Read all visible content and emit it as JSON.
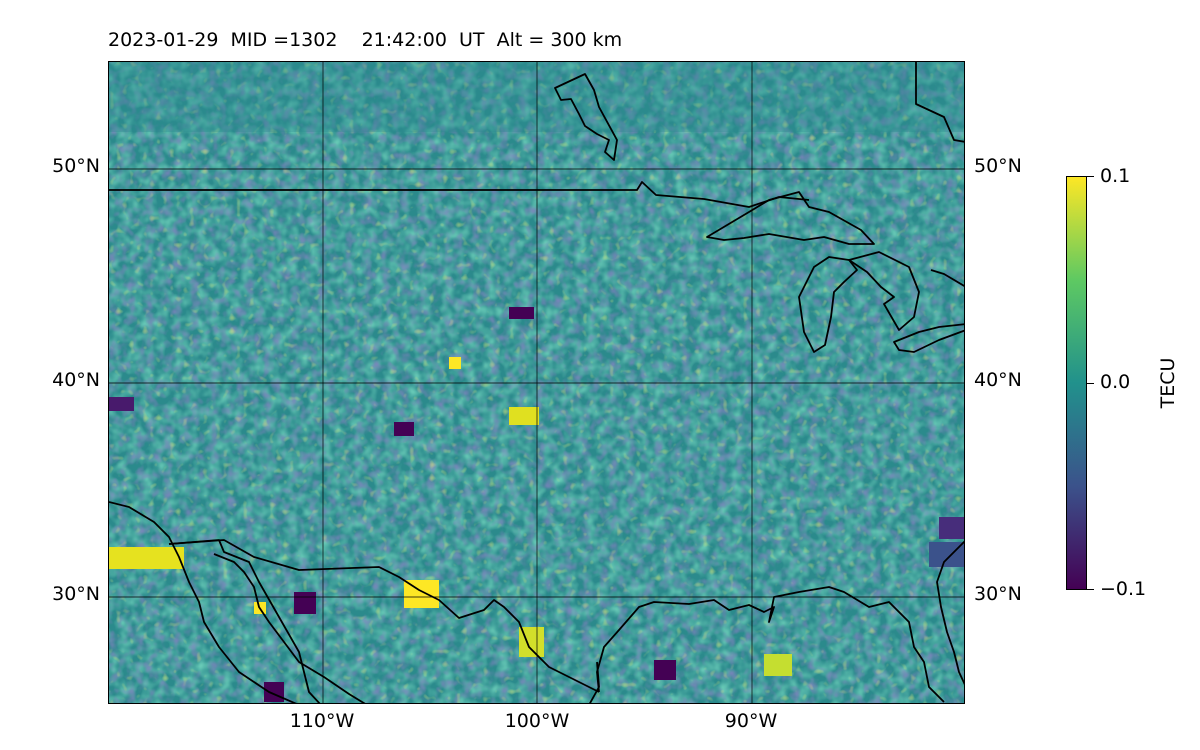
{
  "figure": {
    "title": "2023-01-29  MID =1302    21:42:00  UT  Alt = 300 km",
    "lat_ticks": [
      "50°N",
      "40°N",
      "30°N"
    ],
    "lon_ticks": [
      "110°W",
      "100°W",
      "90°W"
    ]
  },
  "colorbar": {
    "label": "TECU",
    "ticks": [
      "0.1",
      "0.0",
      "−0.1"
    ],
    "colormap": "viridis",
    "colors": [
      "#440154",
      "#3b528b",
      "#21918c",
      "#5ec962",
      "#fde725"
    ]
  },
  "map": {
    "projection": "PlateCarree",
    "lon_range": [
      -120,
      -80
    ],
    "lat_range": [
      25,
      55
    ],
    "features": [
      "coastlines",
      "country-borders",
      "great-lakes"
    ]
  }
}
